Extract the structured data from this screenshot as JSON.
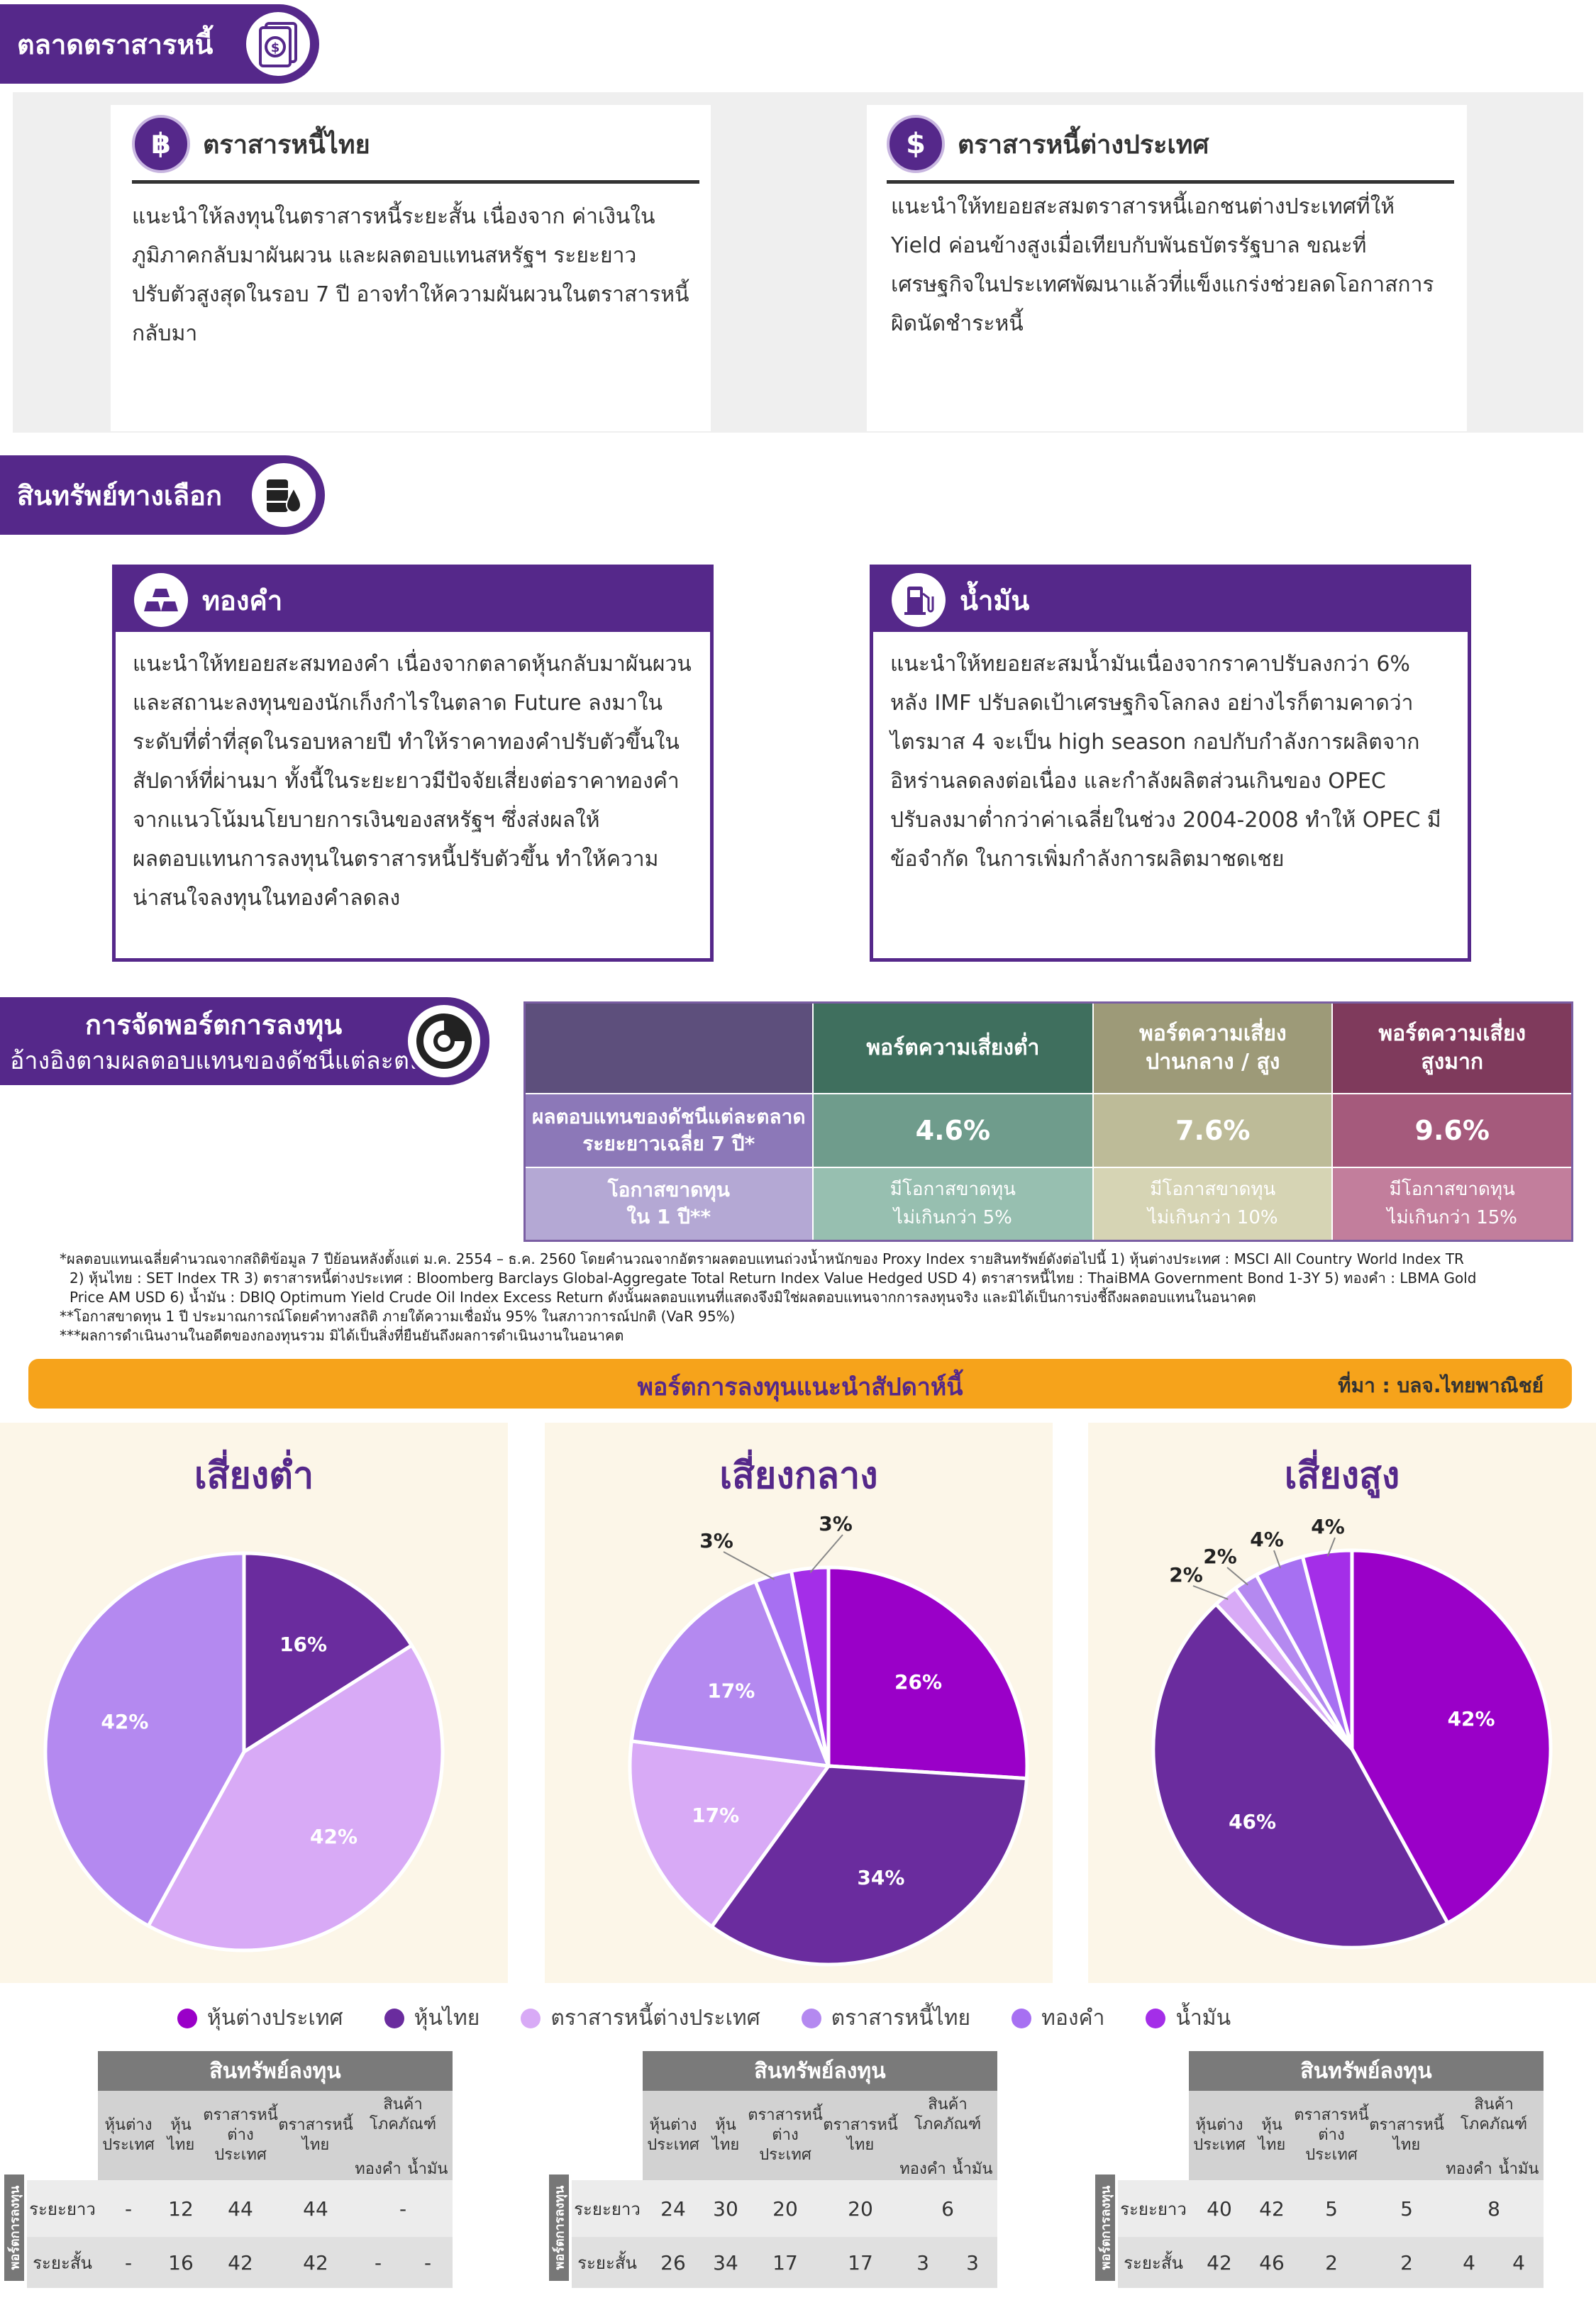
{
  "sections": {
    "bond_market": "ตลาดตราสารหนี้",
    "alternative": "สินทรัพย์ทางเลือก",
    "allocation_line1": "การจัดพอร์ตการลงทุน",
    "allocation_line2": "อ้างอิงตามผลตอบแทนของดัชนีแต่ละตลาด"
  },
  "thai_bond": {
    "title": "ตราสารหนี้ไทย",
    "lines": [
      "แนะนำให้ลงทุนในตราสารหนี้ระยะสั้น เนื่องจาก ค่าเงินใน",
      "ภูมิภาคกลับมาผันผวน และผลตอบแทนสหรัฐฯ ระยะยาว",
      "ปรับตัวสูงสุดในรอบ 7 ปี อาจทำให้ความผันผวนในตราสารหนี้",
      "กลับมา"
    ]
  },
  "foreign_bond": {
    "title": "ตราสารหนี้ต่างประเทศ",
    "lines": [
      "แนะนำให้ทยอยสะสมตราสารหนี้เอกชนต่างประเทศที่ให้",
      "Yield ค่อนข้างสูงเมื่อเทียบกับพันธบัตรรัฐบาล ขณะที่",
      "เศรษฐกิจในประเทศพัฒนาแล้วที่แข็งแกร่งช่วยลดโอกาสการ",
      "ผิดนัดชำระหนี้"
    ]
  },
  "gold": {
    "title": "ทองคำ",
    "lines": [
      "แนะนำให้ทยอยสะสมทองคำ เนื่องจากตลาดหุ้นกลับมาผันผวน",
      "และสถานะลงทุนของนักเก็งกำไรในตลาด Future ลงมาใน",
      "ระดับที่ต่ำที่สุดในรอบหลายปี ทำให้ราคาทองคำปรับตัวขึ้นใน",
      "สัปดาห์ที่ผ่านมา ทั้งนี้ในระยะยาวมีปัจจัยเสี่ยงต่อราคาทองคำ",
      "จากแนวโน้มนโยบายการเงินของสหรัฐฯ ซึ่งส่งผลให้",
      "ผลตอบแทนการลงทุนในตราสารหนี้ปรับตัวขึ้น ทำให้ความ",
      "น่าสนใจลงทุนในทองคำลดลง"
    ]
  },
  "oil": {
    "title": "น้ำมัน",
    "lines": [
      "แนะนำให้ทยอยสะสมน้ำมันเนื่องจากราคาปรับลงกว่า 6%",
      "หลัง IMF ปรับลดเป้าเศรษฐกิจโลกลง อย่างไรก็ตามคาดว่า",
      "ไตรมาส 4 จะเป็น high season กอปกับกำลังการผลิตจาก",
      "อิหร่านลดลงต่อเนื่อง และกำลังผลิตส่วนเกินของ OPEC",
      "ปรับลงมาต่ำกว่าค่าเฉลี่ยในช่วง 2004-2008 ทำให้ OPEC มี",
      "ข้อจำกัด ในการเพิ่มกำลังการผลิตมาชดเชย"
    ]
  },
  "portfolio_table": {
    "headers": [
      "พอร์ตความเสี่ยงต่ำ",
      "พอร์ตความเสี่ยง\nปานกลาง / สูง",
      "พอร์ตความเสี่ยง\nสูงมาก"
    ],
    "row1_label": "ผลตอบแทนของดัชนีแต่ละตลาด\nระยะยาวเฉลี่ย 7 ปี*",
    "row1_values": [
      "4.6%",
      "7.6%",
      "9.6%"
    ],
    "row2_label": "โอกาสขาดทุน\nใน 1 ปี**",
    "row2_values": [
      "มีโอกาสขาดทุน\nไม่เกินกว่า 5%",
      "มีโอกาสขาดทุน\nไม่เกินกว่า 10%",
      "มีโอกาสขาดทุน\nไม่เกินกว่า 15%"
    ]
  },
  "notes": [
    "*ผลตอบแทนเฉลี่ยคำนวณจากสถิติข้อมูล 7 ปีย้อนหลังตั้งแต่ ม.ค. 2554 – ธ.ค. 2560 โดยคำนวณจากอัตราผลตอบแทนถ่วงน้ำหนักของ Proxy Index รายสินทรัพย์ดังต่อไปนี้ 1) หุ้นต่างประเทศ : MSCI All Country World Index TR",
    "2) หุ้นไทย : SET Index TR  3) ตราสารหนี้ต่างประเทศ : Bloomberg Barclays Global-Aggregate Total Return Index Value Hedged USD  4) ตราสารหนี้ไทย : ThaiBMA Government Bond 1-3Y  5) ทองคำ : LBMA Gold",
    "Price AM USD  6) น้ำมัน : DBIQ Optimum Yield Crude Oil Index Excess Return ดังนั้นผลตอบแทนที่แสดงจึงมิใช่ผลตอบแทนจากการลงทุนจริง และมิได้เป็นการบ่งชี้ถึงผลตอบแทนในอนาคต",
    "**โอกาสขาดทุน 1 ปี ประมาณการณ์โดยคำทางสถิติ ภายใต้ความเชื่อมั่น 95% ในสภาวการณ์ปกติ (VaR 95%)",
    "***ผลการดำเนินงานในอดีตของกองทุนรวม มิได้เป็นสิ่งที่ยืนยันถึงผลการดำเนินงานในอนาคต"
  ],
  "banner": {
    "title": "พอร์ตการลงทุนแนะนำสัปดาห์นี้",
    "source": "ที่มา : บลจ.ไทยพาณิชย์"
  },
  "colors": {
    "foreign_equity": "#9a00c8",
    "thai_equity": "#6a2c9e",
    "foreign_bond": "#d8aaf6",
    "thai_bond": "#b489f0",
    "gold": "#a770f2",
    "oil": "#a42ee8",
    "ribbon": "#55288a"
  },
  "legend": [
    "หุ้นต่างประเทศ",
    "หุ้นไทย",
    "ตราสารหนี้ต่างประเทศ",
    "ตราสารหนี้ไทย",
    "ทองคำ",
    "น้ำมัน"
  ],
  "chart_data": [
    {
      "type": "pie",
      "title": "เสี่ยงต่ำ",
      "categories": [
        "หุ้นไทย",
        "ตราสารหนี้ต่างประเทศ",
        "ตราสารหนี้ไทย"
      ],
      "values": [
        16,
        42,
        42
      ],
      "labels": [
        "16%",
        "42%",
        "42%"
      ]
    },
    {
      "type": "pie",
      "title": "เสี่ยงกลาง",
      "categories": [
        "หุ้นต่างประเทศ",
        "หุ้นไทย",
        "ตราสารหนี้ต่างประเทศ",
        "ตราสารหนี้ไทย",
        "ทองคำ",
        "น้ำมัน"
      ],
      "values": [
        26,
        34,
        17,
        17,
        3,
        3
      ],
      "labels": [
        "26%",
        "34%",
        "17%",
        "17%",
        "3%",
        "3%"
      ]
    },
    {
      "type": "pie",
      "title": "เสี่ยงสูง",
      "categories": [
        "หุ้นต่างประเทศ",
        "หุ้นไทย",
        "ตราสารหนี้ต่างประเทศ",
        "ตราสารหนี้ไทย",
        "ทองคำ",
        "น้ำมัน"
      ],
      "values": [
        42,
        46,
        2,
        2,
        4,
        4
      ],
      "labels": [
        "42%",
        "46%",
        "2%",
        "2%",
        "4%",
        "4%"
      ]
    }
  ],
  "asset_tables": {
    "header": "สินทรัพย์ลงทุน",
    "side_label": "พอร์ตการลงทุน",
    "cols": [
      "หุ้นต่าง\nประเทศ",
      "หุ้นไทย",
      "ตราสารหนี้\nต่างประเทศ",
      "ตราสารหนี้\nไทย",
      "สินค้า\nโภคภัณฑ์"
    ],
    "commodity_sub": [
      "ทองคำ",
      "น้ำมัน"
    ],
    "row_long": "ระยะยาว",
    "row_short": "ระยะสั้น",
    "tables": [
      {
        "long": [
          "-",
          "12",
          "44",
          "44",
          "-"
        ],
        "short": [
          "-",
          "16",
          "42",
          "42",
          "-",
          "-"
        ]
      },
      {
        "long": [
          "24",
          "30",
          "20",
          "20",
          "6"
        ],
        "short": [
          "26",
          "34",
          "17",
          "17",
          "3",
          "3"
        ]
      },
      {
        "long": [
          "40",
          "42",
          "5",
          "5",
          "8"
        ],
        "short": [
          "42",
          "46",
          "2",
          "2",
          "4",
          "4"
        ]
      }
    ]
  }
}
